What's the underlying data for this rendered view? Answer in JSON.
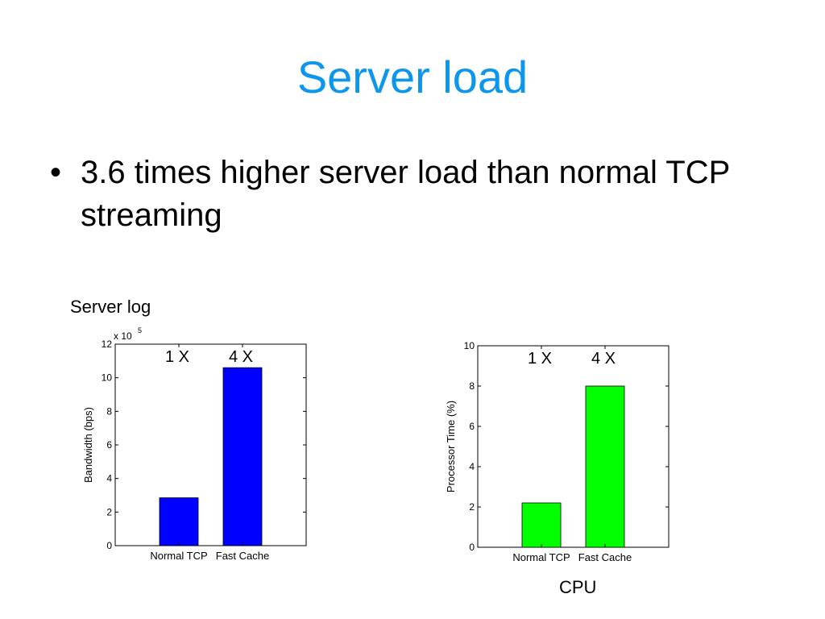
{
  "slide": {
    "title": "Server load",
    "bullets": [
      {
        "symbol": "•",
        "text": "3.6 times higher server load than normal TCP streaming"
      }
    ]
  },
  "captions": {
    "left": "Server log",
    "right": "CPU"
  },
  "chart_data": [
    {
      "type": "bar",
      "categories": [
        "Normal TCP",
        "Fast Cache"
      ],
      "values": [
        2.85,
        10.6
      ],
      "ylabel": "Bandwidth (bps)",
      "xlabel": "",
      "ylim": [
        0,
        12
      ],
      "yticks": [
        "0",
        "2",
        "4",
        "6",
        "8",
        "10",
        "12"
      ],
      "exponent_label": {
        "base": "x 10",
        "power": "5"
      },
      "bar_annotations": [
        "1 X",
        "4 X"
      ],
      "bar_color": "#0000ff",
      "grid": false
    },
    {
      "type": "bar",
      "categories": [
        "Normal TCP",
        "Fast Cache"
      ],
      "values": [
        2.2,
        8.0
      ],
      "ylabel": "Processor Time (%)",
      "xlabel": "",
      "ylim": [
        0,
        10
      ],
      "yticks": [
        "0",
        "2",
        "4",
        "6",
        "8",
        "10"
      ],
      "bar_annotations": [
        "1 X",
        "4 X"
      ],
      "bar_color": "#00ff00",
      "grid": false
    }
  ]
}
